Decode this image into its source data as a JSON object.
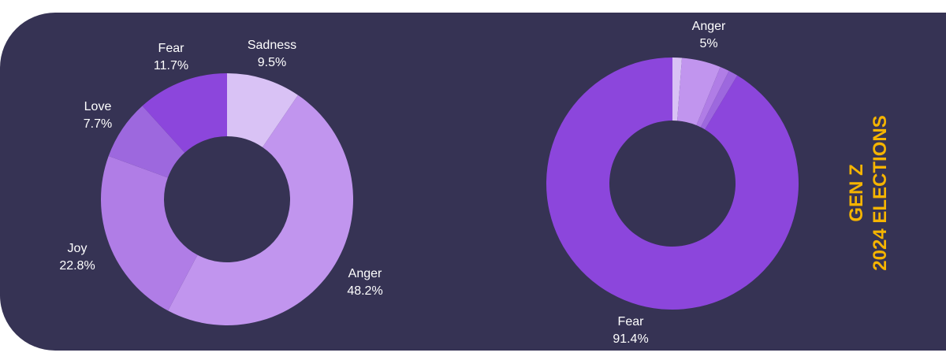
{
  "side_title": {
    "line1": "GEN Z",
    "line2": "2024 ELECTIONS"
  },
  "chart_data": [
    {
      "type": "pie",
      "variant": "donut",
      "slices": [
        {
          "label": "Sadness",
          "value": 9.5,
          "value_label": "9.5%",
          "color": "#d9c2f5"
        },
        {
          "label": "Anger",
          "value": 48.2,
          "value_label": "48.2%",
          "color": "#c195ee"
        },
        {
          "label": "Joy",
          "value": 22.8,
          "value_label": "22.8%",
          "color": "#b07de6"
        },
        {
          "label": "Love",
          "value": 7.7,
          "value_label": "7.7%",
          "color": "#9d68de"
        },
        {
          "label": "Fear",
          "value": 11.7,
          "value_label": "11.7%",
          "color": "#8c46dc"
        }
      ]
    },
    {
      "type": "pie",
      "variant": "donut",
      "slices": [
        {
          "label": "",
          "value": 1.2,
          "value_label": "",
          "color": "#d9c2f5"
        },
        {
          "label": "Anger",
          "value": 5,
          "value_label": "5%",
          "color": "#c195ee"
        },
        {
          "label": "",
          "value": 1.2,
          "value_label": "",
          "color": "#b07de6"
        },
        {
          "label": "",
          "value": 1.2,
          "value_label": "",
          "color": "#9d68de"
        },
        {
          "label": "Fear",
          "value": 91.4,
          "value_label": "91.4%",
          "color": "#8c46dc"
        }
      ]
    }
  ]
}
